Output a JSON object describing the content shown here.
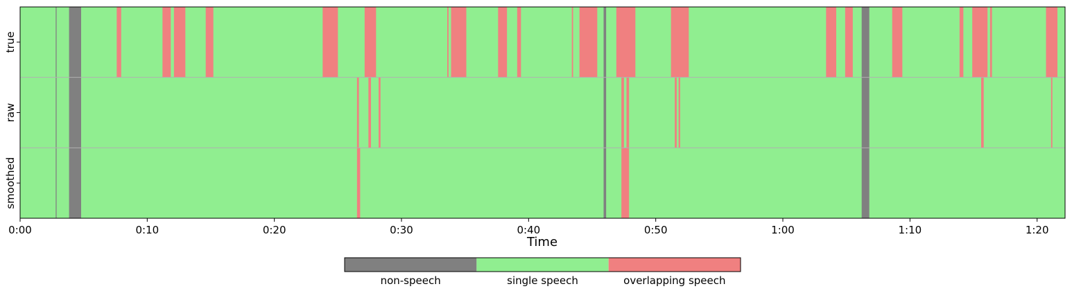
{
  "chart_data": {
    "type": "timeline",
    "xlabel": "Time",
    "xlim_seconds": [
      0,
      82.2
    ],
    "xticks": [
      {
        "value": 0,
        "label": "0:00"
      },
      {
        "value": 10,
        "label": "0:10"
      },
      {
        "value": 20,
        "label": "0:20"
      },
      {
        "value": 30,
        "label": "0:30"
      },
      {
        "value": 40,
        "label": "0:40"
      },
      {
        "value": 50,
        "label": "0:50"
      },
      {
        "value": 60,
        "label": "1:00"
      },
      {
        "value": 70,
        "label": "1:10"
      },
      {
        "value": 80,
        "label": "1:20"
      }
    ],
    "classes": [
      {
        "key": "non",
        "label": "non-speech",
        "color": "#808080"
      },
      {
        "key": "single",
        "label": "single speech",
        "color": "#90ee90"
      },
      {
        "key": "overlap",
        "label": "overlapping speech",
        "color": "#f08080"
      }
    ],
    "rows": [
      {
        "label": "true",
        "default": "single",
        "segments": [
          {
            "start": 2.8,
            "end": 2.87,
            "class": "non"
          },
          {
            "start": 3.85,
            "end": 4.8,
            "class": "non"
          },
          {
            "start": 7.6,
            "end": 7.95,
            "class": "overlap"
          },
          {
            "start": 11.2,
            "end": 11.85,
            "class": "overlap"
          },
          {
            "start": 12.1,
            "end": 13.0,
            "class": "overlap"
          },
          {
            "start": 14.6,
            "end": 15.2,
            "class": "overlap"
          },
          {
            "start": 23.8,
            "end": 25.0,
            "class": "overlap"
          },
          {
            "start": 27.1,
            "end": 28.0,
            "class": "overlap"
          },
          {
            "start": 33.6,
            "end": 33.7,
            "class": "overlap"
          },
          {
            "start": 33.9,
            "end": 35.1,
            "class": "overlap"
          },
          {
            "start": 37.6,
            "end": 38.3,
            "class": "overlap"
          },
          {
            "start": 39.1,
            "end": 39.4,
            "class": "overlap"
          },
          {
            "start": 43.4,
            "end": 43.5,
            "class": "overlap"
          },
          {
            "start": 44.0,
            "end": 45.4,
            "class": "overlap"
          },
          {
            "start": 45.9,
            "end": 46.1,
            "class": "non"
          },
          {
            "start": 46.9,
            "end": 48.4,
            "class": "overlap"
          },
          {
            "start": 51.2,
            "end": 52.6,
            "class": "overlap"
          },
          {
            "start": 63.4,
            "end": 64.2,
            "class": "overlap"
          },
          {
            "start": 64.9,
            "end": 65.5,
            "class": "overlap"
          },
          {
            "start": 66.2,
            "end": 66.8,
            "class": "non"
          },
          {
            "start": 68.6,
            "end": 69.4,
            "class": "overlap"
          },
          {
            "start": 73.9,
            "end": 74.2,
            "class": "overlap"
          },
          {
            "start": 74.9,
            "end": 76.1,
            "class": "overlap"
          },
          {
            "start": 76.3,
            "end": 76.45,
            "class": "overlap"
          },
          {
            "start": 80.7,
            "end": 81.6,
            "class": "overlap"
          }
        ]
      },
      {
        "label": "raw",
        "default": "single",
        "segments": [
          {
            "start": 2.8,
            "end": 2.87,
            "class": "non"
          },
          {
            "start": 3.85,
            "end": 4.8,
            "class": "non"
          },
          {
            "start": 26.5,
            "end": 26.65,
            "class": "overlap"
          },
          {
            "start": 27.4,
            "end": 27.6,
            "class": "overlap"
          },
          {
            "start": 28.2,
            "end": 28.35,
            "class": "overlap"
          },
          {
            "start": 45.9,
            "end": 46.1,
            "class": "non"
          },
          {
            "start": 47.3,
            "end": 47.5,
            "class": "overlap"
          },
          {
            "start": 47.7,
            "end": 47.9,
            "class": "overlap"
          },
          {
            "start": 51.5,
            "end": 51.65,
            "class": "overlap"
          },
          {
            "start": 51.8,
            "end": 51.92,
            "class": "overlap"
          },
          {
            "start": 66.2,
            "end": 66.8,
            "class": "non"
          },
          {
            "start": 75.6,
            "end": 75.8,
            "class": "overlap"
          },
          {
            "start": 81.1,
            "end": 81.2,
            "class": "overlap"
          }
        ]
      },
      {
        "label": "smoothed",
        "default": "single",
        "segments": [
          {
            "start": 2.8,
            "end": 2.87,
            "class": "non"
          },
          {
            "start": 3.85,
            "end": 4.8,
            "class": "non"
          },
          {
            "start": 26.5,
            "end": 26.75,
            "class": "overlap"
          },
          {
            "start": 45.9,
            "end": 46.1,
            "class": "non"
          },
          {
            "start": 47.3,
            "end": 47.9,
            "class": "overlap"
          },
          {
            "start": 66.2,
            "end": 66.8,
            "class": "non"
          }
        ]
      }
    ]
  }
}
